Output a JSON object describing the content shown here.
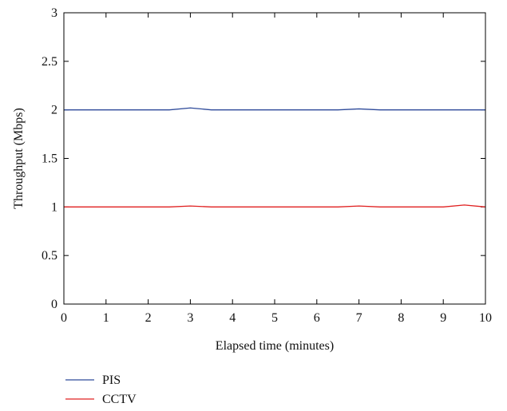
{
  "chart_data": {
    "type": "line",
    "xlabel": "Elapsed time (minutes)",
    "ylabel": "Throughput (Mbps)",
    "xlim": [
      0,
      10
    ],
    "ylim": [
      0,
      3
    ],
    "x_ticks": [
      "0",
      "1",
      "2",
      "3",
      "4",
      "5",
      "6",
      "7",
      "8",
      "9",
      "10"
    ],
    "y_ticks": [
      "0",
      "0.5",
      "1",
      "1.5",
      "2",
      "2.5",
      "3"
    ],
    "grid": false,
    "legend_position": "bottom-left, below plot",
    "series": [
      {
        "name": "PIS",
        "color": "#2e4a9a",
        "x": [
          0,
          0.5,
          1,
          1.5,
          2,
          2.5,
          3,
          3.5,
          4,
          4.5,
          5,
          5.5,
          6,
          6.5,
          7,
          7.5,
          8,
          8.5,
          9,
          9.5,
          10
        ],
        "y": [
          2.0,
          2.0,
          2.0,
          2.0,
          2.0,
          2.0,
          2.02,
          2.0,
          2.0,
          2.0,
          2.0,
          2.0,
          2.0,
          2.0,
          2.01,
          2.0,
          2.0,
          2.0,
          2.0,
          2.0,
          2.0
        ]
      },
      {
        "name": "CCTV",
        "color": "#e02020",
        "x": [
          0,
          0.5,
          1,
          1.5,
          2,
          2.5,
          3,
          3.5,
          4,
          4.5,
          5,
          5.5,
          6,
          6.5,
          7,
          7.5,
          8,
          8.5,
          9,
          9.5,
          10
        ],
        "y": [
          1.0,
          1.0,
          1.0,
          1.0,
          1.0,
          1.0,
          1.01,
          1.0,
          1.0,
          1.0,
          1.0,
          1.0,
          1.0,
          1.0,
          1.01,
          1.0,
          1.0,
          1.0,
          1.0,
          1.02,
          1.0
        ]
      }
    ]
  }
}
